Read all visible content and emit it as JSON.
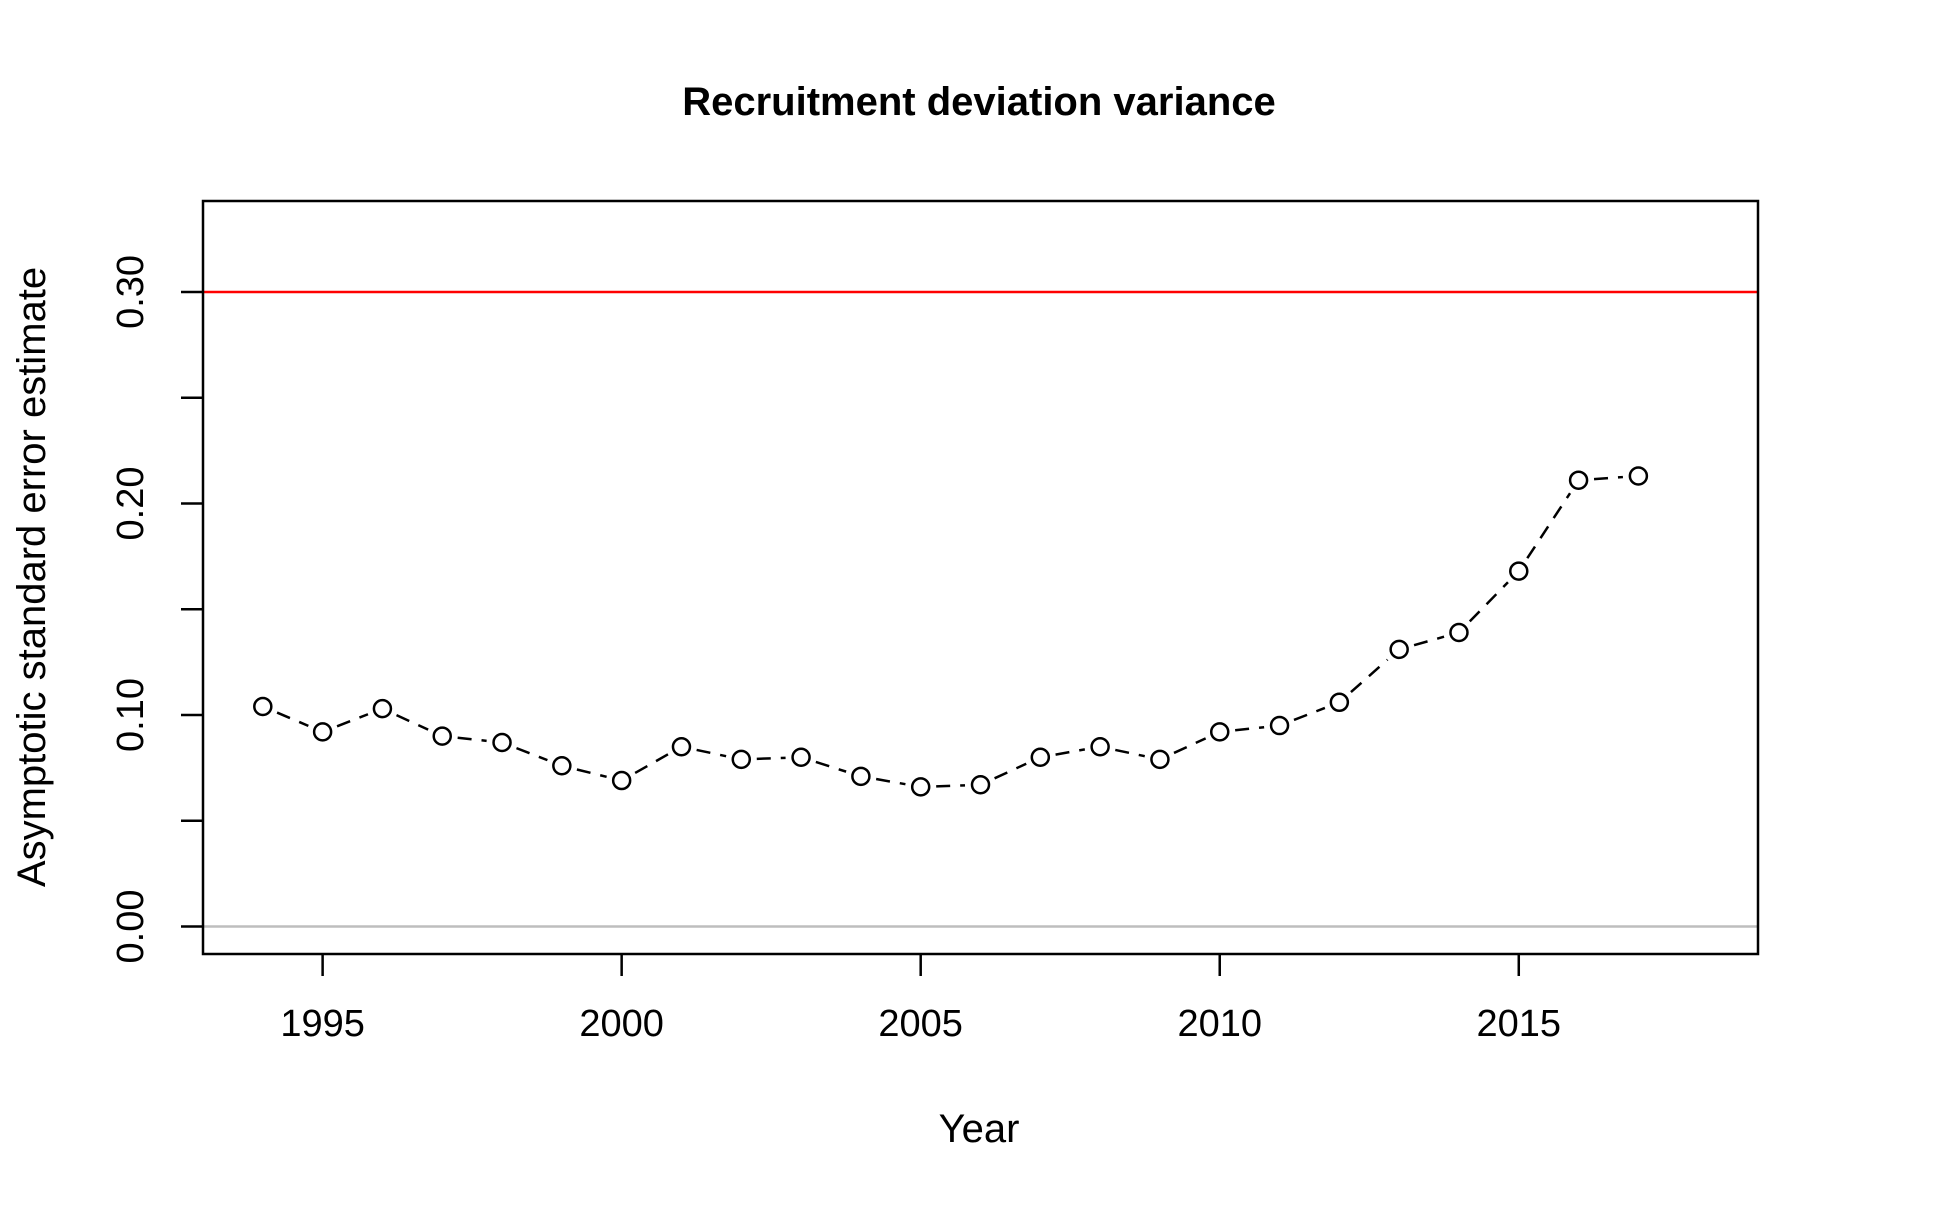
{
  "chart_data": {
    "type": "line",
    "title": "Recruitment deviation variance",
    "xlabel": "Year",
    "ylabel": "Asymptotic standard error estimate",
    "x_ticks": [
      1995,
      2000,
      2005,
      2010,
      2015
    ],
    "y_ticks": [
      "0.00",
      "0.10",
      "0.20",
      "0.30"
    ],
    "y_minor_ticks": [
      0.05,
      0.15,
      0.25
    ],
    "xlim": [
      1993,
      2019
    ],
    "ylim": [
      -0.013,
      0.343
    ],
    "grid": false,
    "series": [
      {
        "x": [
          1994,
          1995,
          1996,
          1997,
          1998,
          1999,
          2000,
          2001,
          2002,
          2003,
          2004,
          2005,
          2006,
          2007,
          2008,
          2009,
          2010,
          2011,
          2012,
          2013,
          2014,
          2015,
          2016,
          2017
        ],
        "values": [
          0.104,
          0.092,
          0.103,
          0.09,
          0.087,
          0.076,
          0.069,
          0.085,
          0.079,
          0.08,
          0.071,
          0.066,
          0.067,
          0.08,
          0.085,
          0.079,
          0.092,
          0.095,
          0.106,
          0.131,
          0.139,
          0.168,
          0.211,
          0.213
        ],
        "style": "dashed line with open circles",
        "color": "#000000"
      }
    ],
    "reference_lines": [
      {
        "y": 0.3,
        "color": "#ff0000"
      },
      {
        "y": 0.0,
        "color": "#bebebe"
      }
    ]
  }
}
